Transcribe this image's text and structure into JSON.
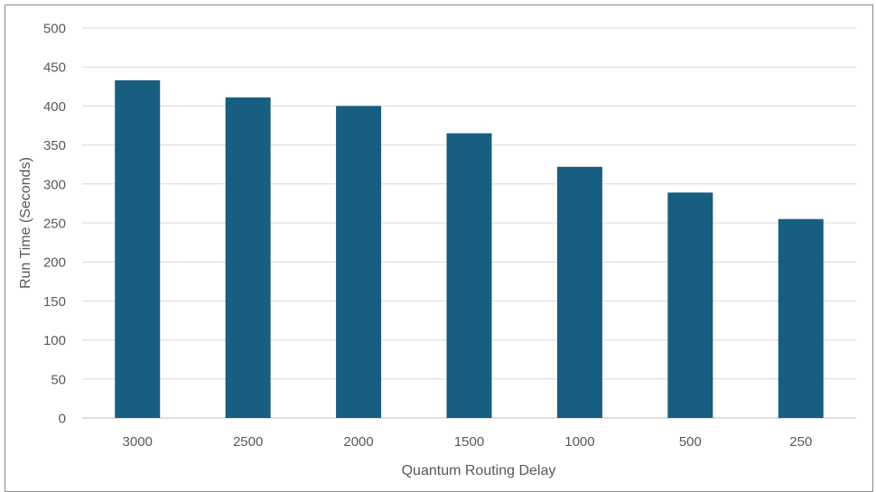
{
  "chart_data": {
    "type": "bar",
    "categories": [
      "3000",
      "2500",
      "2000",
      "1500",
      "1000",
      "500",
      "250"
    ],
    "values": [
      433,
      411,
      400,
      365,
      322,
      289,
      255
    ],
    "title": "",
    "xlabel": "Quantum Routing Delay",
    "ylabel": "Run Time (Seconds)",
    "ylim": [
      0,
      500
    ],
    "yticks": [
      0,
      50,
      100,
      150,
      200,
      250,
      300,
      350,
      400,
      450,
      500
    ],
    "grid": true,
    "legend": "none",
    "bar_color": "#175e80",
    "grid_color": "#d9d9d9",
    "axis_line_color": "#bfbfbf",
    "label_color": "#595959"
  }
}
